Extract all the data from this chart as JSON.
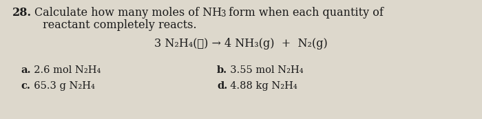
{
  "bg_color": "#ddd8cc",
  "text_color": "#1a1a1a",
  "font_size_main": 11.5,
  "font_size_eq": 11.5,
  "font_size_parts": 10.5,
  "number_bold": true,
  "label_bold": true,
  "line1_number": "28.",
  "line1_text1": "Calculate how many moles of NH",
  "line1_sub1": "3",
  "line1_text2": " form when each quantity of",
  "line2_indent": "    reactant completely reacts.",
  "eq_line": "3 N₂H₄(ℓ) → 4 NH₃(g)  +  N₂(g)",
  "a_label": "a.",
  "a_text": "  2.6 mol N₂H₄",
  "b_label": "b.",
  "b_text": "  3.55 mol N₂H₄",
  "c_label": "c.",
  "c_text": "  65.3 g N₂H₄",
  "d_label": "d.",
  "d_text": "  4.88 kg N₂H₄"
}
